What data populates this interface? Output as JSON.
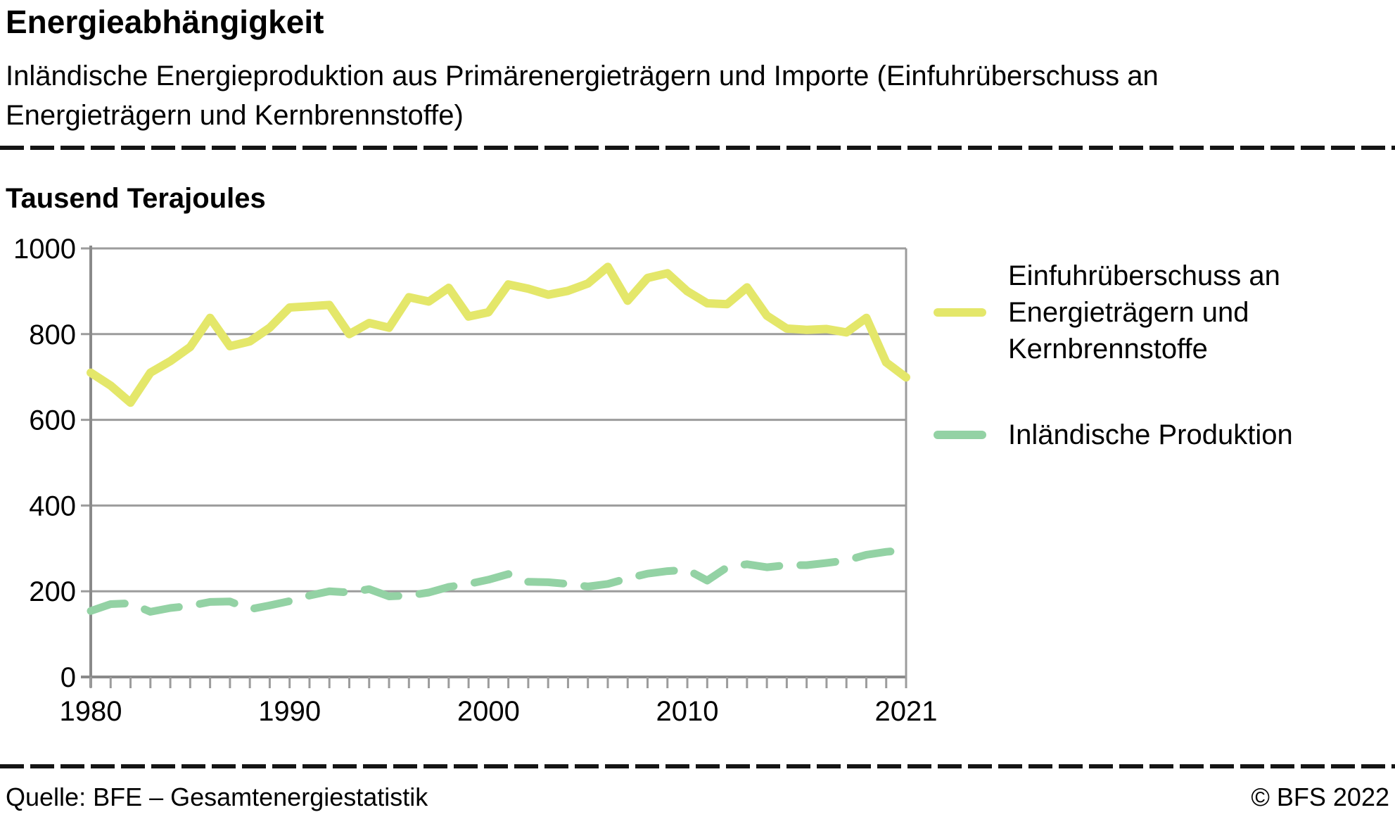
{
  "header": {
    "title": "Energieabhängigkeit",
    "subtitle_line1": "Inländische Energieproduktion aus Primärenergieträgern und Importe (Einfuhrüberschuss an",
    "subtitle_line2": "Energieträgern und Kernbrennstoffe)"
  },
  "chart_data": {
    "type": "line",
    "title": "Energieabhängigkeit",
    "ylabel": "Tausend Terajoules",
    "xlabel": "",
    "ylim": [
      0,
      1000
    ],
    "yticks": [
      0,
      200,
      400,
      600,
      800,
      1000
    ],
    "xtick_labels": [
      1980,
      1990,
      2000,
      2010,
      2021
    ],
    "grid": true,
    "legend_position": "right",
    "x": [
      1980,
      1981,
      1982,
      1983,
      1984,
      1985,
      1986,
      1987,
      1988,
      1989,
      1990,
      1991,
      1992,
      1993,
      1994,
      1995,
      1996,
      1997,
      1998,
      1999,
      2000,
      2001,
      2002,
      2003,
      2004,
      2005,
      2006,
      2007,
      2008,
      2009,
      2010,
      2011,
      2012,
      2013,
      2014,
      2015,
      2016,
      2017,
      2018,
      2019,
      2020,
      2021
    ],
    "series": [
      {
        "name": "Einfuhrüberschuss an Energieträgern und Kernbrennstoffe",
        "color": "#e4e76a",
        "style": "solid",
        "values": [
          710,
          680,
          640,
          710,
          737,
          770,
          838,
          772,
          783,
          815,
          862,
          865,
          868,
          800,
          826,
          815,
          886,
          876,
          908,
          841,
          851,
          916,
          906,
          892,
          901,
          918,
          957,
          878,
          931,
          942,
          900,
          872,
          870,
          909,
          843,
          813,
          810,
          812,
          804,
          838,
          734,
          699
        ]
      },
      {
        "name": "Inländische Produktion",
        "color": "#93d2a4",
        "style": "dashed",
        "values": [
          154,
          170,
          172,
          152,
          161,
          166,
          175,
          176,
          158,
          167,
          177,
          190,
          200,
          197,
          205,
          188,
          190,
          197,
          210,
          217,
          227,
          240,
          222,
          221,
          217,
          211,
          217,
          230,
          241,
          247,
          250,
          225,
          256,
          263,
          256,
          261,
          261,
          266,
          272,
          285,
          292,
          296
        ]
      }
    ],
    "axis_color": "#8a8a8a",
    "grid_color": "#9c9c9c"
  },
  "footer": {
    "source": "Quelle: BFE – Gesamtenergiestatistik",
    "copyright": "© BFS 2022"
  }
}
